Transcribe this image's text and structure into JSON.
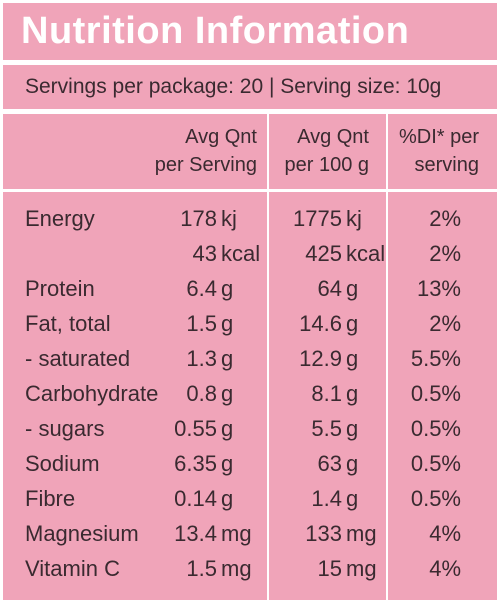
{
  "title": "Nutrition Information",
  "serving_info": "Servings per package: 20 | Serving size: 10g",
  "headers": {
    "col1_line1": "Avg Qnt",
    "col1_line2": "per Serving",
    "col2_line1": "Avg Qnt",
    "col2_line2": "per 100 g",
    "col3_line1": "%DI* per",
    "col3_line2": "serving"
  },
  "rows": [
    {
      "label": "Energy",
      "v1": "178",
      "u1": "kj",
      "v2": "1775",
      "u2": "kj",
      "di": "2%"
    },
    {
      "label": "",
      "v1": "43",
      "u1": "kcal",
      "v2": "425",
      "u2": "kcal",
      "di": "2%"
    },
    {
      "label": "Protein",
      "v1": "6.4",
      "u1": "g",
      "v2": "64",
      "u2": "g",
      "di": "13%"
    },
    {
      "label": "Fat, total",
      "v1": "1.5",
      "u1": "g",
      "v2": "14.6",
      "u2": "g",
      "di": "2%"
    },
    {
      "label": "- saturated",
      "v1": "1.3",
      "u1": "g",
      "v2": "12.9",
      "u2": "g",
      "di": "5.5%"
    },
    {
      "label": "Carbohydrate",
      "v1": "0.8",
      "u1": "g",
      "v2": "8.1",
      "u2": "g",
      "di": "0.5%"
    },
    {
      "label": "- sugars",
      "v1": "0.55",
      "u1": "g",
      "v2": "5.5",
      "u2": "g",
      "di": "0.5%"
    },
    {
      "label": "Sodium",
      "v1": "6.35",
      "u1": "g",
      "v2": "63",
      "u2": "g",
      "di": "0.5%"
    },
    {
      "label": "Fibre",
      "v1": "0.14",
      "u1": "g",
      "v2": "1.4",
      "u2": "g",
      "di": "0.5%"
    },
    {
      "label": "Magnesium",
      "v1": "13.4",
      "u1": "mg",
      "v2": "133",
      "u2": "mg",
      "di": "4%"
    },
    {
      "label": "Vitamin C",
      "v1": "1.5",
      "u1": "mg",
      "v2": "15",
      "u2": "mg",
      "di": "4%"
    }
  ],
  "colors": {
    "panel": "#f0a4b9",
    "lines": "#ffffff",
    "text": "#3a2a30"
  }
}
